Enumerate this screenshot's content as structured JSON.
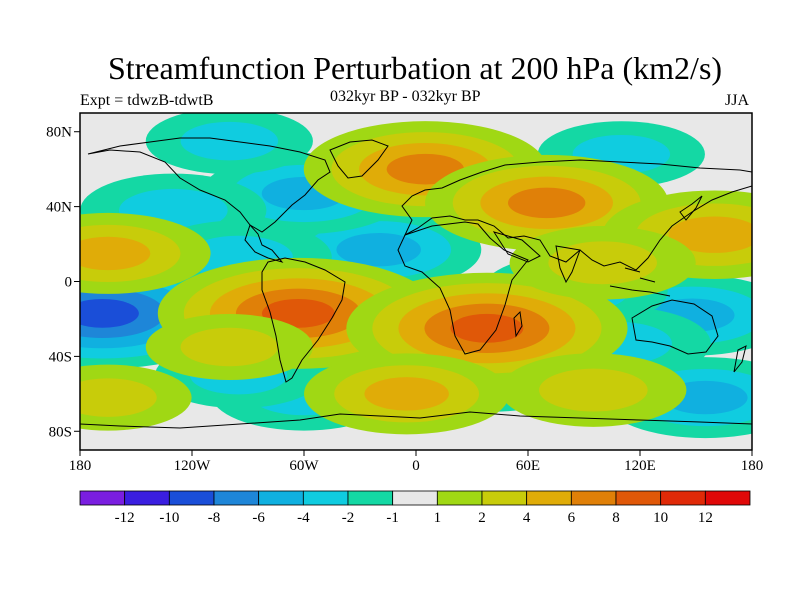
{
  "title": "Streamfunction Perturbation at 200 hPa (km2/s)",
  "left_label": "Expt = tdwzB-tdwtB",
  "center_label": "032kyr BP - 032kyr BP",
  "right_label": "JJA",
  "lat_ticks": [
    "80N",
    "40N",
    "0",
    "40S",
    "80S"
  ],
  "lon_ticks": [
    "180",
    "120W",
    "60W",
    "0",
    "60E",
    "120E",
    "180"
  ],
  "colorbar": {
    "labels": [
      "-12",
      "-10",
      "-8",
      "-6",
      "-4",
      "-2",
      "-1",
      "1",
      "2",
      "4",
      "6",
      "8",
      "10",
      "12"
    ],
    "colors": [
      "#7a1ee0",
      "#3a1ee0",
      "#1a4ed8",
      "#1e86d8",
      "#10b0e0",
      "#10cce0",
      "#14d8a4",
      "#e8e8e8",
      "#a0d814",
      "#c8cc0a",
      "#e0ac08",
      "#e08008",
      "#e05808",
      "#e02a08",
      "#e00808"
    ]
  },
  "chart_data": {
    "type": "heatmap",
    "title": "Streamfunction Perturbation at 200 hPa (km2/s)",
    "units": "km2/s",
    "x_range": [
      -180,
      180
    ],
    "y_range": [
      -90,
      90
    ],
    "levels": [
      -12,
      -10,
      -8,
      -6,
      -4,
      -2,
      -1,
      1,
      2,
      4,
      6,
      8,
      10,
      12
    ],
    "anomalies": [
      {
        "lon": -168,
        "lat": -17,
        "value": -8
      },
      {
        "lon": -60,
        "lat": 23,
        "value": -6
      },
      {
        "lon": -20,
        "lat": 17,
        "value": -4
      },
      {
        "lon": -60,
        "lat": 47,
        "value": -4
      },
      {
        "lon": -130,
        "lat": 38,
        "value": -3
      },
      {
        "lon": -95,
        "lat": 13,
        "value": -3
      },
      {
        "lon": 148,
        "lat": -18,
        "value": -4
      },
      {
        "lon": 85,
        "lat": -5,
        "value": -3
      },
      {
        "lon": 108,
        "lat": -33,
        "value": -3
      },
      {
        "lon": 155,
        "lat": -62,
        "value": -4
      },
      {
        "lon": -60,
        "lat": -60,
        "value": -3
      },
      {
        "lon": 40,
        "lat": -50,
        "value": -3
      },
      {
        "lon": -95,
        "lat": -50,
        "value": -2
      },
      {
        "lon": 110,
        "lat": 68,
        "value": -2
      },
      {
        "lon": -100,
        "lat": 75,
        "value": -2
      },
      {
        "lon": -63,
        "lat": -17,
        "value": 8
      },
      {
        "lon": 38,
        "lat": -25,
        "value": 8
      },
      {
        "lon": 5,
        "lat": 60,
        "value": 6
      },
      {
        "lon": 70,
        "lat": 42,
        "value": 6
      },
      {
        "lon": 160,
        "lat": 25,
        "value": 5
      },
      {
        "lon": -165,
        "lat": 15,
        "value": 4
      },
      {
        "lon": -5,
        "lat": -60,
        "value": 4
      },
      {
        "lon": 95,
        "lat": -58,
        "value": 3
      },
      {
        "lon": -100,
        "lat": -35,
        "value": 2
      },
      {
        "lon": 100,
        "lat": 10,
        "value": 3
      },
      {
        "lon": -165,
        "lat": -62,
        "value": 2
      }
    ]
  }
}
